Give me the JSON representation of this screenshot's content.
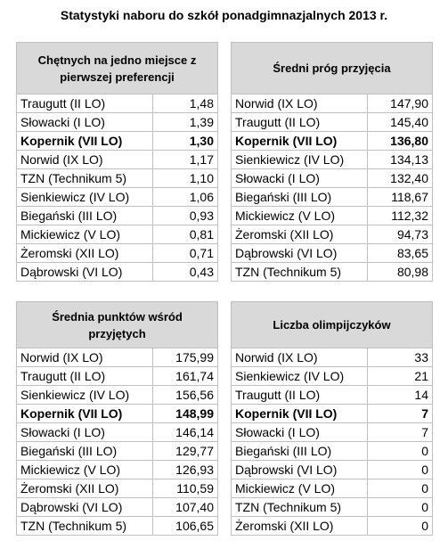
{
  "title": "Statystyki naboru do szkół ponadgimnazjalnych 2013 r.",
  "tables": [
    {
      "header": "Chętnych na jedno miejsce z pierwszej preferencji",
      "highlight_row": 2,
      "rows": [
        [
          "Traugutt (II LO)",
          "1,48"
        ],
        [
          "Słowacki (I LO)",
          "1,39"
        ],
        [
          "Kopernik (VII LO)",
          "1,30"
        ],
        [
          "Norwid (IX LO)",
          "1,17"
        ],
        [
          "TZN (Technikum 5)",
          "1,10"
        ],
        [
          "Sienkiewicz (IV LO)",
          "1,06"
        ],
        [
          "Biegański (III LO)",
          "0,93"
        ],
        [
          "Mickiewicz (V LO)",
          "0,81"
        ],
        [
          "Żeromski (XII LO)",
          "0,71"
        ],
        [
          "Dąbrowski (VI LO)",
          "0,43"
        ]
      ]
    },
    {
      "header": "Średni próg przyjęcia",
      "highlight_row": 2,
      "rows": [
        [
          "Norwid (IX LO)",
          "147,90"
        ],
        [
          "Traugutt (II LO)",
          "145,40"
        ],
        [
          "Kopernik (VII LO)",
          "136,80"
        ],
        [
          "Sienkiewicz (IV LO)",
          "134,13"
        ],
        [
          "Słowacki (I LO)",
          "132,40"
        ],
        [
          "Biegański (III LO)",
          "118,67"
        ],
        [
          "Mickiewicz (V LO)",
          "112,32"
        ],
        [
          "Żeromski (XII LO)",
          "94,73"
        ],
        [
          "Dąbrowski (VI LO)",
          "83,65"
        ],
        [
          "TZN (Technikum 5)",
          "80,98"
        ]
      ]
    },
    {
      "header": "Średnia punktów wśród przyjętych",
      "highlight_row": 3,
      "rows": [
        [
          "Norwid (IX LO)",
          "175,99"
        ],
        [
          "Traugutt (II LO)",
          "161,74"
        ],
        [
          "Sienkiewicz (IV LO)",
          "156,56"
        ],
        [
          "Kopernik (VII LO)",
          "148,99"
        ],
        [
          "Słowacki (I LO)",
          "146,14"
        ],
        [
          "Biegański (III LO)",
          "129,77"
        ],
        [
          "Mickiewicz (V LO)",
          "126,93"
        ],
        [
          "Żeromski (XII LO)",
          "110,59"
        ],
        [
          "Dąbrowski (VI LO)",
          "107,40"
        ],
        [
          "TZN (Technikum 5)",
          "106,65"
        ]
      ]
    },
    {
      "header": "Liczba olimpijczyków",
      "highlight_row": 3,
      "rows": [
        [
          "Norwid (IX LO)",
          "33"
        ],
        [
          "Sienkiewicz (IV LO)",
          "21"
        ],
        [
          "Traugutt (II LO)",
          "14"
        ],
        [
          "Kopernik (VII LO)",
          "7"
        ],
        [
          "Słowacki (I LO)",
          "7"
        ],
        [
          "Biegański (III LO)",
          "0"
        ],
        [
          "Dąbrowski (VI LO)",
          "0"
        ],
        [
          "Mickiewicz (V LO)",
          "0"
        ],
        [
          "TZN (Technikum 5)",
          "0"
        ],
        [
          "Żeromski (XII LO)",
          "0"
        ]
      ]
    }
  ]
}
